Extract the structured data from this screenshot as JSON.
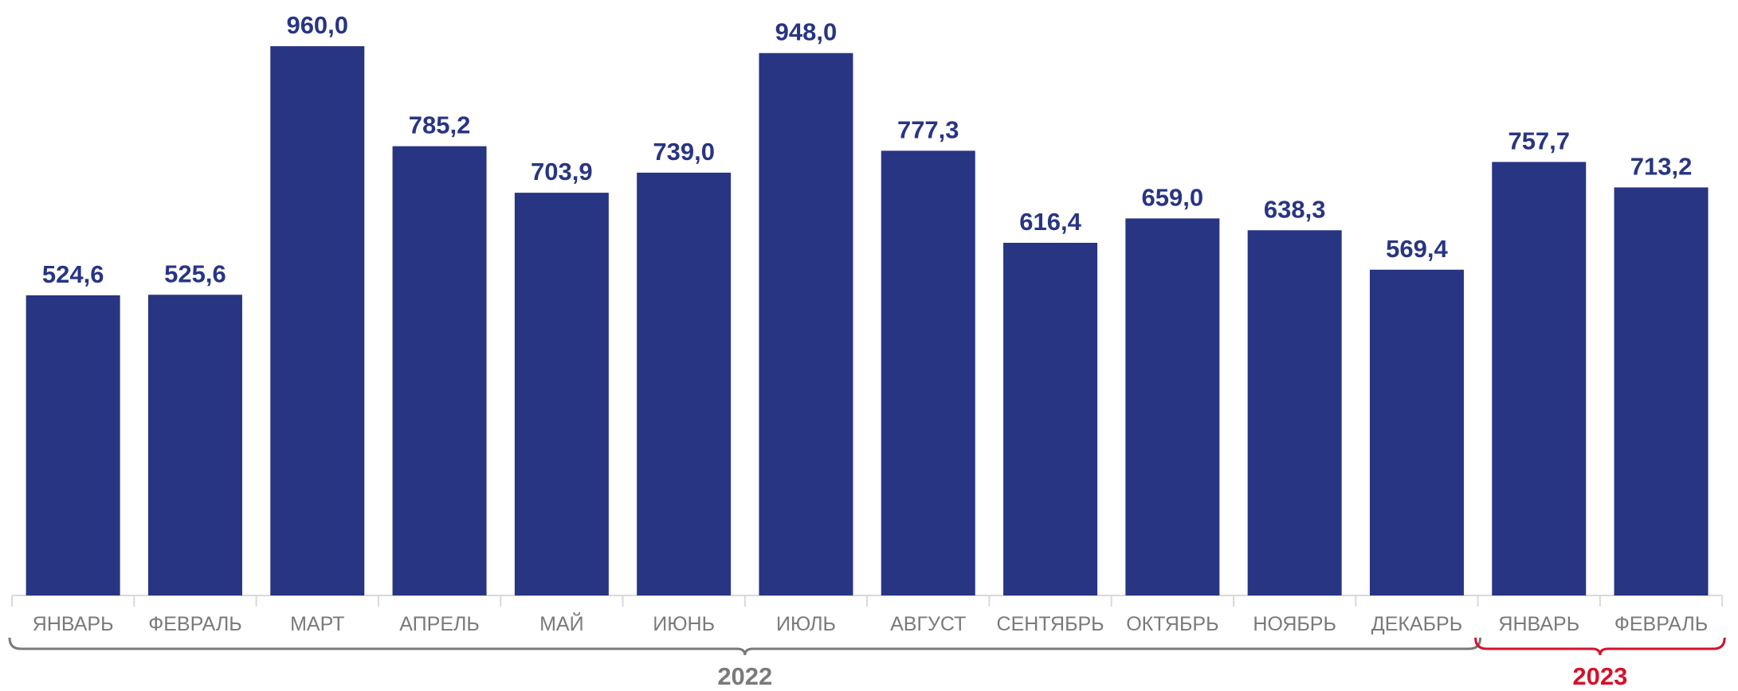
{
  "chart_data": {
    "type": "bar",
    "categories": [
      "ЯНВАРЬ",
      "ФЕВРАЛЬ",
      "МАРТ",
      "АПРЕЛЬ",
      "МАЙ",
      "ИЮНЬ",
      "ИЮЛЬ",
      "АВГУСТ",
      "СЕНТЯБРЬ",
      "ОКТЯБРЬ",
      "НОЯБРЬ",
      "ДЕКАБРЬ",
      "ЯНВАРЬ",
      "ФЕВРАЛЬ"
    ],
    "values": [
      524.6,
      525.6,
      960.0,
      785.2,
      703.9,
      739.0,
      948.0,
      777.3,
      616.4,
      659.0,
      638.3,
      569.4,
      757.7,
      713.2
    ],
    "value_labels": [
      "524,6",
      "525,6",
      "960,0",
      "785,2",
      "703,9",
      "739,0",
      "948,0",
      "777,3",
      "616,4",
      "659,0",
      "638,3",
      "569,4",
      "757,7",
      "713,2"
    ],
    "groups": [
      {
        "label": "2022",
        "start": 0,
        "end": 11,
        "color": "#7a7a7a"
      },
      {
        "label": "2023",
        "start": 12,
        "end": 13,
        "color": "#d4122b"
      }
    ],
    "title": "",
    "xlabel": "",
    "ylabel": "",
    "ylim": [
      0,
      1000
    ],
    "grid": false,
    "bar_color": "#283583",
    "label_color": "#283583",
    "category_color": "#7a7a7a"
  }
}
